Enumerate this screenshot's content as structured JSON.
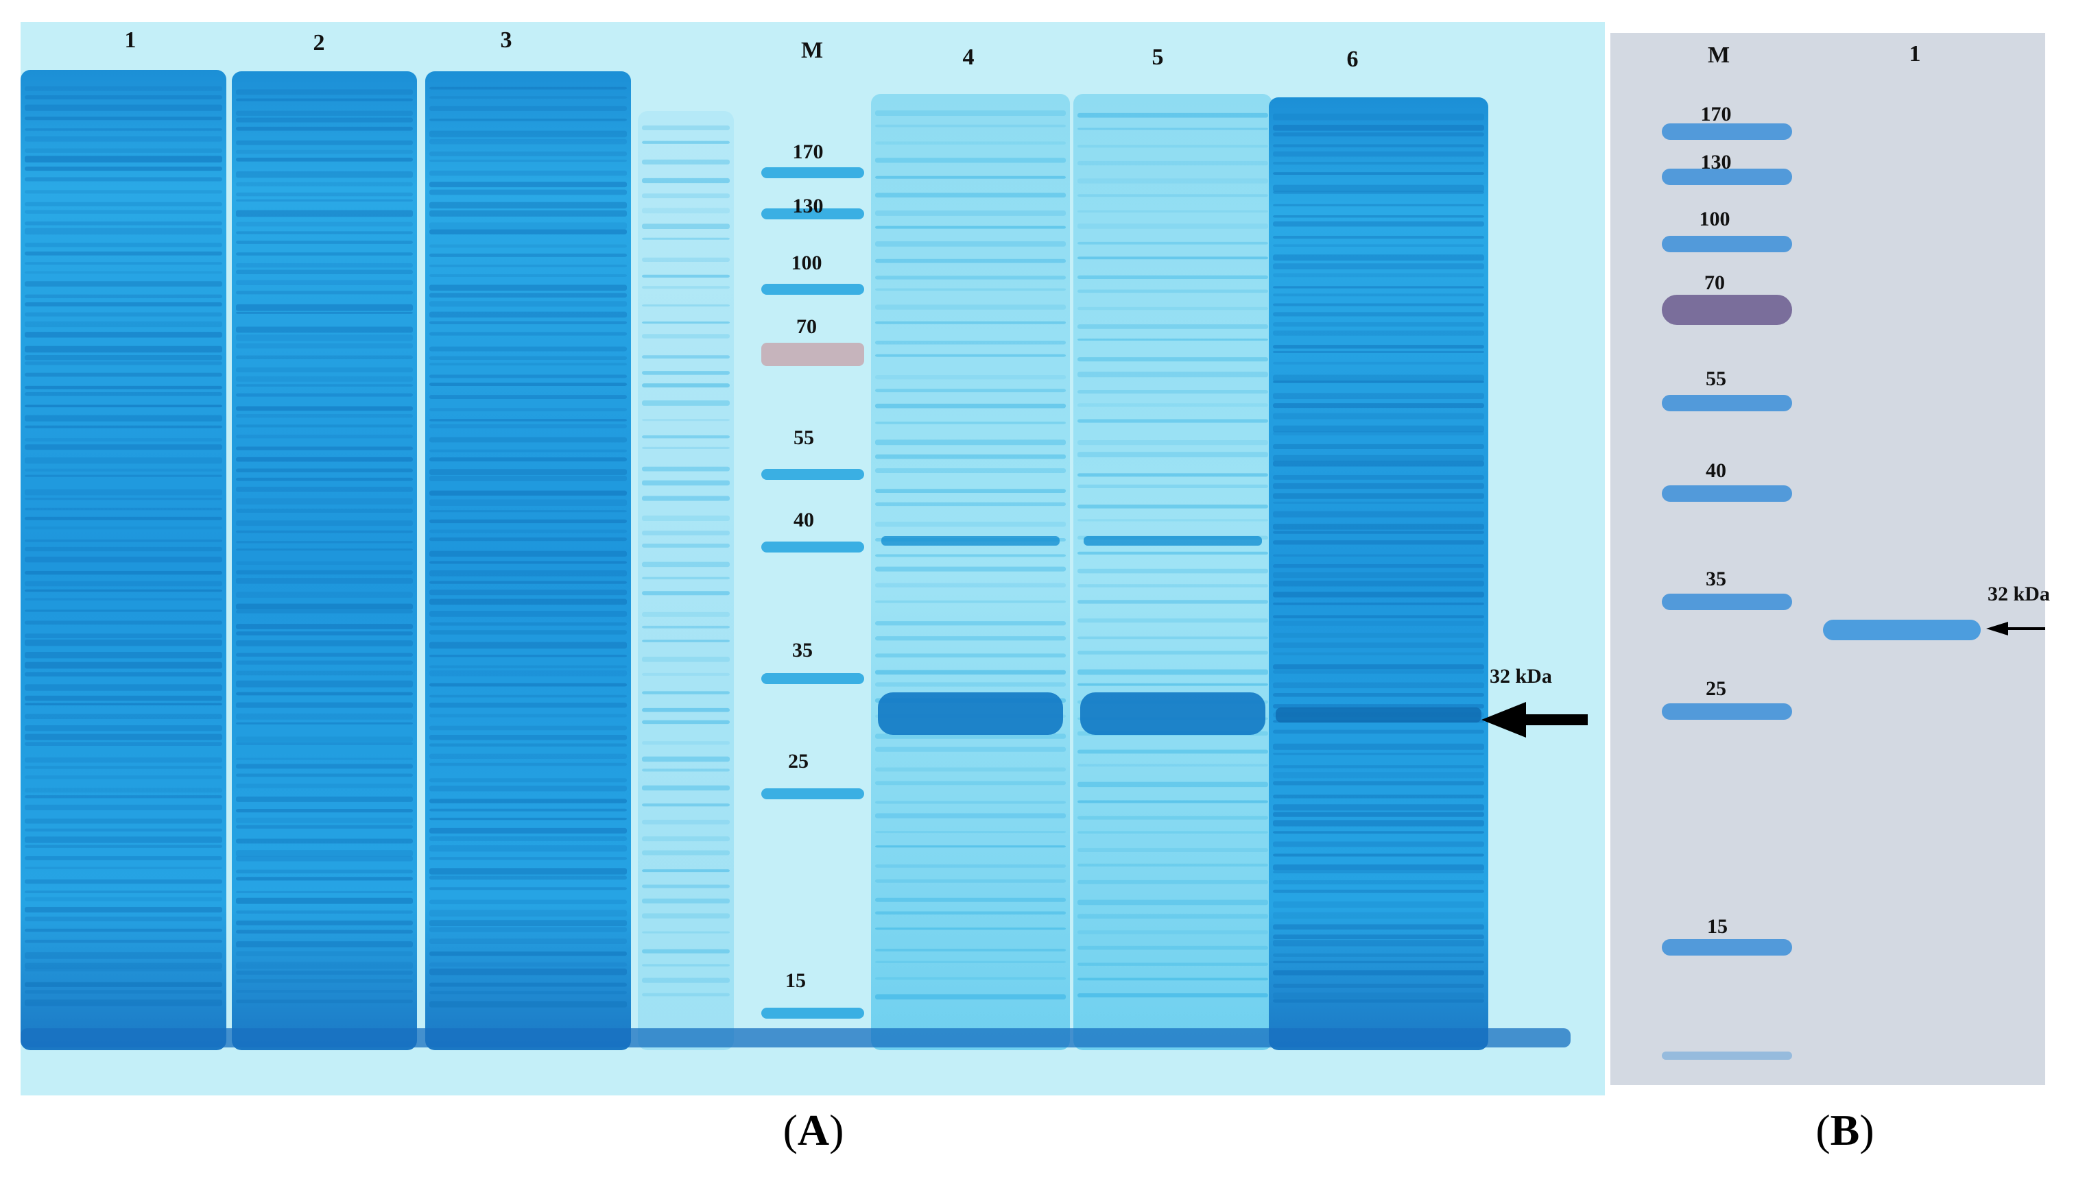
{
  "colors": {
    "gel_a_background": "#bfeef7",
    "gel_a_stain": "#14a7e0",
    "gel_a_dark_stain": "#1f7fc8",
    "gel_b_background": "#cfd6e0",
    "gel_b_marker": "#3b8ed8",
    "gel_b_marker_70": "#6a5a8e",
    "arrow": "#000000"
  },
  "panel_a": {
    "caption_letter": "A",
    "lane_labels": [
      "1",
      "2",
      "3",
      "M",
      "4",
      "5",
      "6"
    ],
    "marker_labels": [
      "170",
      "130",
      "100",
      "70",
      "55",
      "40",
      "35",
      "25",
      "15"
    ],
    "target_label": "32 kDa"
  },
  "panel_b": {
    "caption_letter": "B",
    "lane_labels": [
      "M",
      "1"
    ],
    "marker_labels": [
      "170",
      "130",
      "100",
      "70",
      "55",
      "40",
      "35",
      "25",
      "15"
    ],
    "target_label": "32 kDa"
  }
}
